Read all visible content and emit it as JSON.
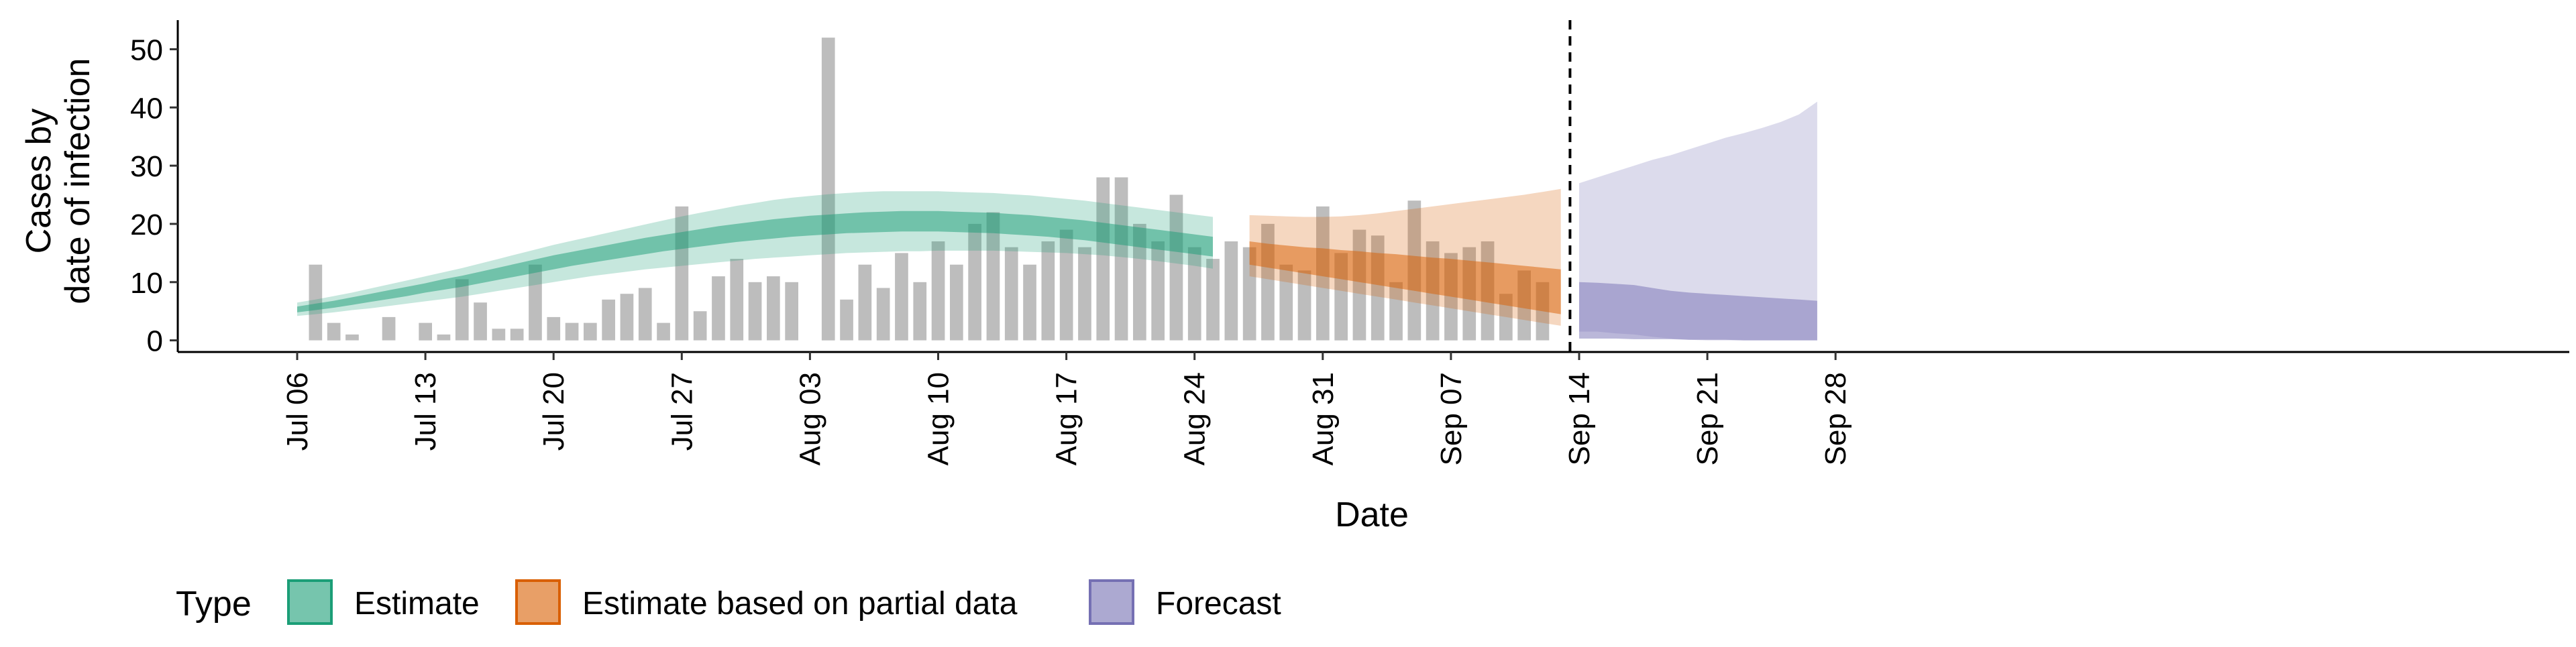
{
  "chart_data": {
    "type": "bar",
    "xlabel": "Date",
    "ylabel_lines": [
      "Cases by",
      "date of infection"
    ],
    "ylim": [
      -2,
      55
    ],
    "x_start": "2020-07-06",
    "x_end": "2020-09-28",
    "yticks": [
      "0",
      "10",
      "20",
      "30",
      "40",
      "50"
    ],
    "xticks": [
      {
        "date": "2020-07-06",
        "label": "Jul 06"
      },
      {
        "date": "2020-07-13",
        "label": "Jul 13"
      },
      {
        "date": "2020-07-20",
        "label": "Jul 20"
      },
      {
        "date": "2020-07-27",
        "label": "Jul 27"
      },
      {
        "date": "2020-08-03",
        "label": "Aug 03"
      },
      {
        "date": "2020-08-10",
        "label": "Aug 10"
      },
      {
        "date": "2020-08-17",
        "label": "Aug 17"
      },
      {
        "date": "2020-08-24",
        "label": "Aug 24"
      },
      {
        "date": "2020-08-31",
        "label": "Aug 31"
      },
      {
        "date": "2020-09-07",
        "label": "Sep 07"
      },
      {
        "date": "2020-09-14",
        "label": "Sep 14"
      },
      {
        "date": "2020-09-21",
        "label": "Sep 21"
      },
      {
        "date": "2020-09-28",
        "label": "Sep 28"
      }
    ],
    "cases_start": "2020-07-07",
    "cases": [
      13,
      3,
      1,
      0,
      4,
      0,
      3,
      1,
      10.5,
      6.5,
      2,
      2,
      13,
      4,
      3,
      3,
      7,
      8,
      9,
      3,
      23,
      5,
      11,
      14,
      10,
      11,
      10,
      0,
      52,
      7,
      13,
      9,
      15,
      10,
      17,
      13,
      20,
      22,
      16,
      13,
      17,
      19,
      16,
      28,
      28,
      20,
      17,
      25,
      16,
      14,
      17,
      16,
      20,
      13,
      12,
      23,
      15,
      19,
      18,
      10,
      24,
      17,
      15,
      16,
      17,
      8,
      12,
      10
    ],
    "forecast_cutoff": "2020-09-13",
    "bands": [
      {
        "type": "Estimate",
        "start": "2020-07-06",
        "color": "#1B9E77",
        "outer_lower": [
          4.2,
          4.5,
          4.8,
          5.2,
          5.5,
          5.9,
          6.3,
          6.7,
          7.1,
          7.5,
          8.0,
          8.5,
          9.0,
          9.5,
          10.0,
          10.5,
          11.0,
          11.4,
          11.8,
          12.2,
          12.5,
          12.8,
          13.1,
          13.4,
          13.7,
          14.0,
          14.2,
          14.4,
          14.6,
          14.8,
          15.0,
          15.1,
          15.2,
          15.3,
          15.3,
          15.4,
          15.4,
          15.4,
          15.4,
          15.3,
          15.2,
          15.1,
          15.0,
          14.8,
          14.6,
          14.3,
          14.0,
          13.6,
          13.2,
          12.8,
          12.3
        ],
        "outer_upper": [
          6.5,
          7.0,
          7.6,
          8.2,
          8.9,
          9.6,
          10.3,
          11.0,
          11.7,
          12.4,
          13.2,
          14.0,
          14.8,
          15.6,
          16.4,
          17.1,
          17.8,
          18.5,
          19.2,
          19.9,
          20.6,
          21.3,
          21.9,
          22.5,
          23.1,
          23.6,
          24.1,
          24.5,
          24.8,
          25.1,
          25.3,
          25.5,
          25.6,
          25.6,
          25.6,
          25.6,
          25.5,
          25.4,
          25.3,
          25.1,
          24.9,
          24.6,
          24.3,
          24.0,
          23.6,
          23.2,
          22.8,
          22.4,
          22.0,
          21.6,
          21.2
        ],
        "inner_lower": [
          4.8,
          5.2,
          5.6,
          6.1,
          6.6,
          7.1,
          7.6,
          8.2,
          8.7,
          9.2,
          9.8,
          10.4,
          11.0,
          11.6,
          12.2,
          12.8,
          13.3,
          13.8,
          14.3,
          14.8,
          15.3,
          15.7,
          16.1,
          16.5,
          16.9,
          17.2,
          17.5,
          17.8,
          18.0,
          18.2,
          18.4,
          18.5,
          18.6,
          18.7,
          18.7,
          18.7,
          18.6,
          18.5,
          18.4,
          18.2,
          18.0,
          17.8,
          17.5,
          17.2,
          16.8,
          16.4,
          16.0,
          15.6,
          15.2,
          14.8,
          14.4
        ],
        "inner_upper": [
          5.8,
          6.3,
          6.8,
          7.4,
          8.0,
          8.6,
          9.2,
          9.8,
          10.5,
          11.1,
          11.8,
          12.5,
          13.2,
          13.9,
          14.6,
          15.2,
          15.8,
          16.4,
          17.0,
          17.6,
          18.1,
          18.6,
          19.1,
          19.6,
          20.0,
          20.4,
          20.8,
          21.1,
          21.4,
          21.6,
          21.8,
          22.0,
          22.1,
          22.2,
          22.2,
          22.2,
          22.1,
          22.0,
          21.9,
          21.7,
          21.5,
          21.2,
          20.9,
          20.6,
          20.2,
          19.8,
          19.4,
          19.0,
          18.6,
          18.2,
          17.8
        ]
      },
      {
        "type": "Estimate based on partial data",
        "start": "2020-08-27",
        "color": "#D95F02",
        "outer_lower": [
          11.0,
          10.5,
          10.0,
          9.5,
          9.0,
          8.5,
          8.0,
          7.5,
          7.0,
          6.5,
          6.0,
          5.5,
          5.0,
          4.5,
          4.0,
          3.5,
          3.0,
          2.5
        ],
        "outer_upper": [
          21.5,
          21.4,
          21.3,
          21.2,
          21.2,
          21.3,
          21.5,
          21.8,
          22.2,
          22.6,
          23.0,
          23.4,
          23.8,
          24.2,
          24.6,
          25.0,
          25.5,
          26.0
        ],
        "inner_lower": [
          13.0,
          12.5,
          12.0,
          11.5,
          11.0,
          10.5,
          10.0,
          9.5,
          9.0,
          8.5,
          8.0,
          7.5,
          7.0,
          6.5,
          6.0,
          5.5,
          5.0,
          4.5
        ],
        "inner_upper": [
          17.0,
          16.6,
          16.3,
          16.0,
          15.8,
          15.5,
          15.3,
          15.0,
          14.8,
          14.5,
          14.2,
          14.0,
          13.7,
          13.4,
          13.1,
          12.8,
          12.5,
          12.2
        ]
      },
      {
        "type": "Forecast",
        "start": "2020-09-14",
        "color": "#7570B3",
        "outer_lower": [
          1.5,
          1.5,
          1.2,
          1.0,
          0.6,
          0.3,
          0.1,
          0.0,
          0.0,
          0.0,
          0.0,
          0.0,
          0.0,
          0.0
        ],
        "outer_upper": [
          27.0,
          28.0,
          29.0,
          30.0,
          31.0,
          31.8,
          32.8,
          33.8,
          34.8,
          35.6,
          36.5,
          37.5,
          38.8,
          41.0
        ],
        "inner_lower": [
          0.3,
          0.3,
          0.3,
          0.2,
          0.2,
          0.2,
          0.1,
          0.1,
          0.1,
          0.0,
          0.0,
          0.0,
          0.0,
          0.0
        ],
        "inner_upper": [
          10.0,
          9.9,
          9.7,
          9.5,
          9.0,
          8.5,
          8.2,
          8.0,
          7.8,
          7.6,
          7.4,
          7.2,
          7.0,
          6.8
        ]
      }
    ],
    "legend": {
      "title": "Type",
      "position": "bottom",
      "items": [
        {
          "label": "Estimate",
          "color": "#1B9E77"
        },
        {
          "label": "Estimate based on partial data",
          "color": "#D95F02"
        },
        {
          "label": "Forecast",
          "color": "#7570B3"
        }
      ]
    },
    "bar_color": "#BDBDBD",
    "grid": false
  }
}
